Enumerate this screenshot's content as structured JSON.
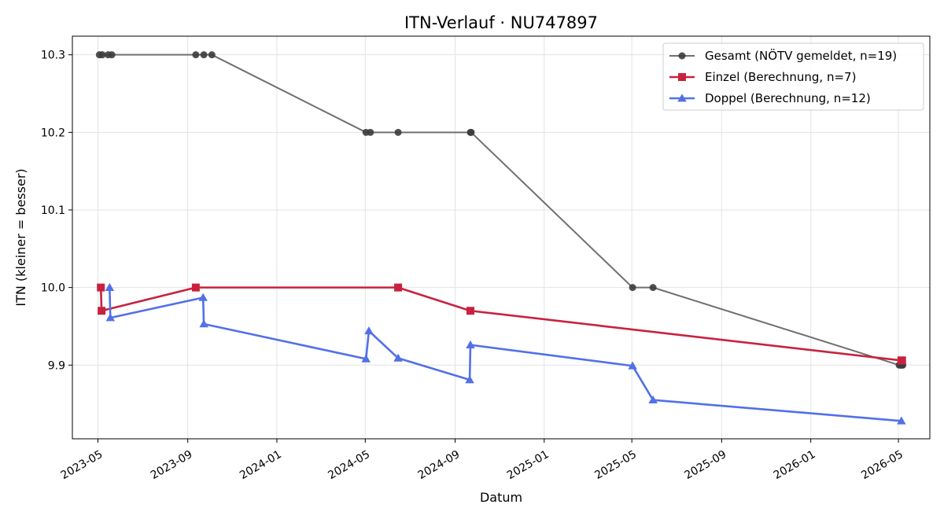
{
  "chart_data": {
    "type": "line",
    "title": "ITN-Verlauf · NU747897",
    "xlabel": "Datum",
    "ylabel": "ITN  (kleiner = besser)",
    "x_ticks": [
      "2023-05",
      "2023-09",
      "2024-01",
      "2024-05",
      "2024-09",
      "2025-01",
      "2025-05",
      "2025-09",
      "2026-01",
      "2026-05"
    ],
    "y_ticks": [
      9.9,
      10.0,
      10.1,
      10.2,
      10.3
    ],
    "xlim": [
      "2023-03-27",
      "2026-06-13"
    ],
    "ylim": [
      9.805,
      10.324
    ],
    "grid": true,
    "legend_position": "top-right",
    "series": [
      {
        "name": "Gesamt (NÖTV gemeldet, n=19)",
        "color": "#707070",
        "marker": "circle",
        "points": [
          [
            "2023-05-03",
            10.3
          ],
          [
            "2023-05-07",
            10.3
          ],
          [
            "2023-05-15",
            10.3
          ],
          [
            "2023-05-20",
            10.3
          ],
          [
            "2023-09-12",
            10.3
          ],
          [
            "2023-09-23",
            10.3
          ],
          [
            "2023-10-04",
            10.3
          ],
          [
            "2024-05-02",
            10.2
          ],
          [
            "2024-05-08",
            10.2
          ],
          [
            "2024-06-15",
            10.2
          ],
          [
            "2024-09-22",
            10.2
          ],
          [
            "2024-09-23",
            10.2
          ],
          [
            "2025-05-02",
            10.0
          ],
          [
            "2025-05-30",
            10.0
          ],
          [
            "2026-05-02",
            9.9
          ],
          [
            "2026-05-04",
            9.9
          ],
          [
            "2026-05-05",
            9.9
          ],
          [
            "2026-05-06",
            9.9
          ],
          [
            "2026-05-07",
            9.9
          ]
        ]
      },
      {
        "name": "Einzel (Berechnung, n=7)",
        "color": "#c8223f",
        "marker": "square",
        "points": [
          [
            "2023-05-05",
            10.0
          ],
          [
            "2023-05-06",
            9.97
          ],
          [
            "2023-09-12",
            10.0
          ],
          [
            "2024-06-15",
            10.0
          ],
          [
            "2024-09-22",
            9.97
          ],
          [
            "2026-05-05",
            9.906
          ],
          [
            "2026-05-06",
            9.906
          ]
        ]
      },
      {
        "name": "Doppel (Berechnung, n=12)",
        "color": "#5270e8",
        "marker": "triangle",
        "points": [
          [
            "2023-05-17",
            10.0
          ],
          [
            "2023-05-18",
            9.961
          ],
          [
            "2023-09-22",
            9.987
          ],
          [
            "2023-09-23",
            9.953
          ],
          [
            "2024-05-02",
            9.908
          ],
          [
            "2024-05-06",
            9.944
          ],
          [
            "2024-06-15",
            9.909
          ],
          [
            "2024-09-21",
            9.881
          ],
          [
            "2024-09-22",
            9.926
          ],
          [
            "2025-05-02",
            9.899
          ],
          [
            "2025-05-30",
            9.855
          ],
          [
            "2026-05-05",
            9.828
          ]
        ]
      }
    ]
  }
}
